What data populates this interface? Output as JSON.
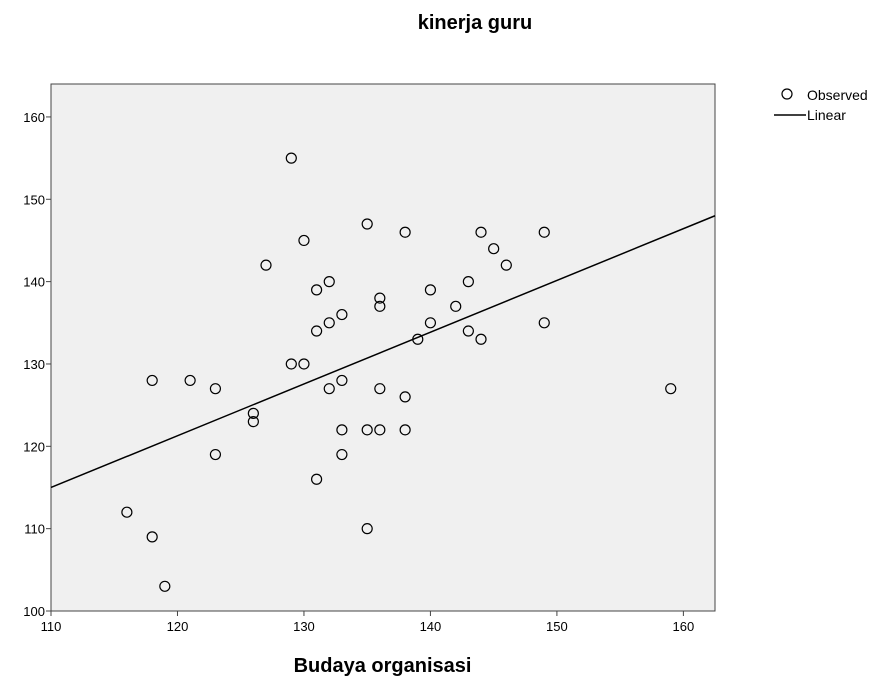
{
  "chart_data": {
    "type": "scatter",
    "title": "kinerja guru",
    "xlabel": "Budaya organisasi",
    "ylabel": "",
    "xlim": [
      110,
      162.5
    ],
    "ylim": [
      100,
      164
    ],
    "xticks": [
      110,
      120,
      130,
      140,
      150,
      160
    ],
    "yticks": [
      100,
      110,
      120,
      130,
      140,
      150,
      160
    ],
    "xtick_labels": [
      "110",
      "120",
      "130",
      "140",
      "150",
      "160"
    ],
    "ytick_labels": [
      "100",
      "110",
      "120",
      "130",
      "140",
      "150",
      "160"
    ],
    "grid": false,
    "legend_position": "top-right",
    "legend": [
      {
        "label": "Observed",
        "symbol": "open-circle"
      },
      {
        "label": "Linear",
        "symbol": "line"
      }
    ],
    "plot_background": "#f0f0f0",
    "series": [
      {
        "name": "Observed",
        "points": [
          [
            129,
            155
          ],
          [
            135,
            147
          ],
          [
            138,
            146
          ],
          [
            144,
            146
          ],
          [
            149,
            146
          ],
          [
            130,
            145
          ],
          [
            145,
            144
          ],
          [
            127,
            142
          ],
          [
            146,
            142
          ],
          [
            132,
            140
          ],
          [
            143,
            140
          ],
          [
            131,
            139
          ],
          [
            140,
            139
          ],
          [
            136,
            138
          ],
          [
            136,
            137
          ],
          [
            142,
            137
          ],
          [
            133,
            136
          ],
          [
            132,
            135
          ],
          [
            140,
            135
          ],
          [
            149,
            135
          ],
          [
            131,
            134
          ],
          [
            143,
            134
          ],
          [
            139,
            133
          ],
          [
            144,
            133
          ],
          [
            129,
            130
          ],
          [
            130,
            130
          ],
          [
            118,
            128
          ],
          [
            121,
            128
          ],
          [
            133,
            128
          ],
          [
            123,
            127
          ],
          [
            132,
            127
          ],
          [
            136,
            127
          ],
          [
            159,
            127
          ],
          [
            138,
            126
          ],
          [
            126,
            124
          ],
          [
            126,
            123
          ],
          [
            133,
            122
          ],
          [
            135,
            122
          ],
          [
            136,
            122
          ],
          [
            138,
            122
          ],
          [
            123,
            119
          ],
          [
            133,
            119
          ],
          [
            131,
            116
          ],
          [
            116,
            112
          ],
          [
            135,
            110
          ],
          [
            118,
            109
          ],
          [
            119,
            103
          ]
        ]
      },
      {
        "name": "Linear",
        "line": [
          [
            110,
            115
          ],
          [
            162.5,
            148
          ]
        ]
      }
    ]
  }
}
